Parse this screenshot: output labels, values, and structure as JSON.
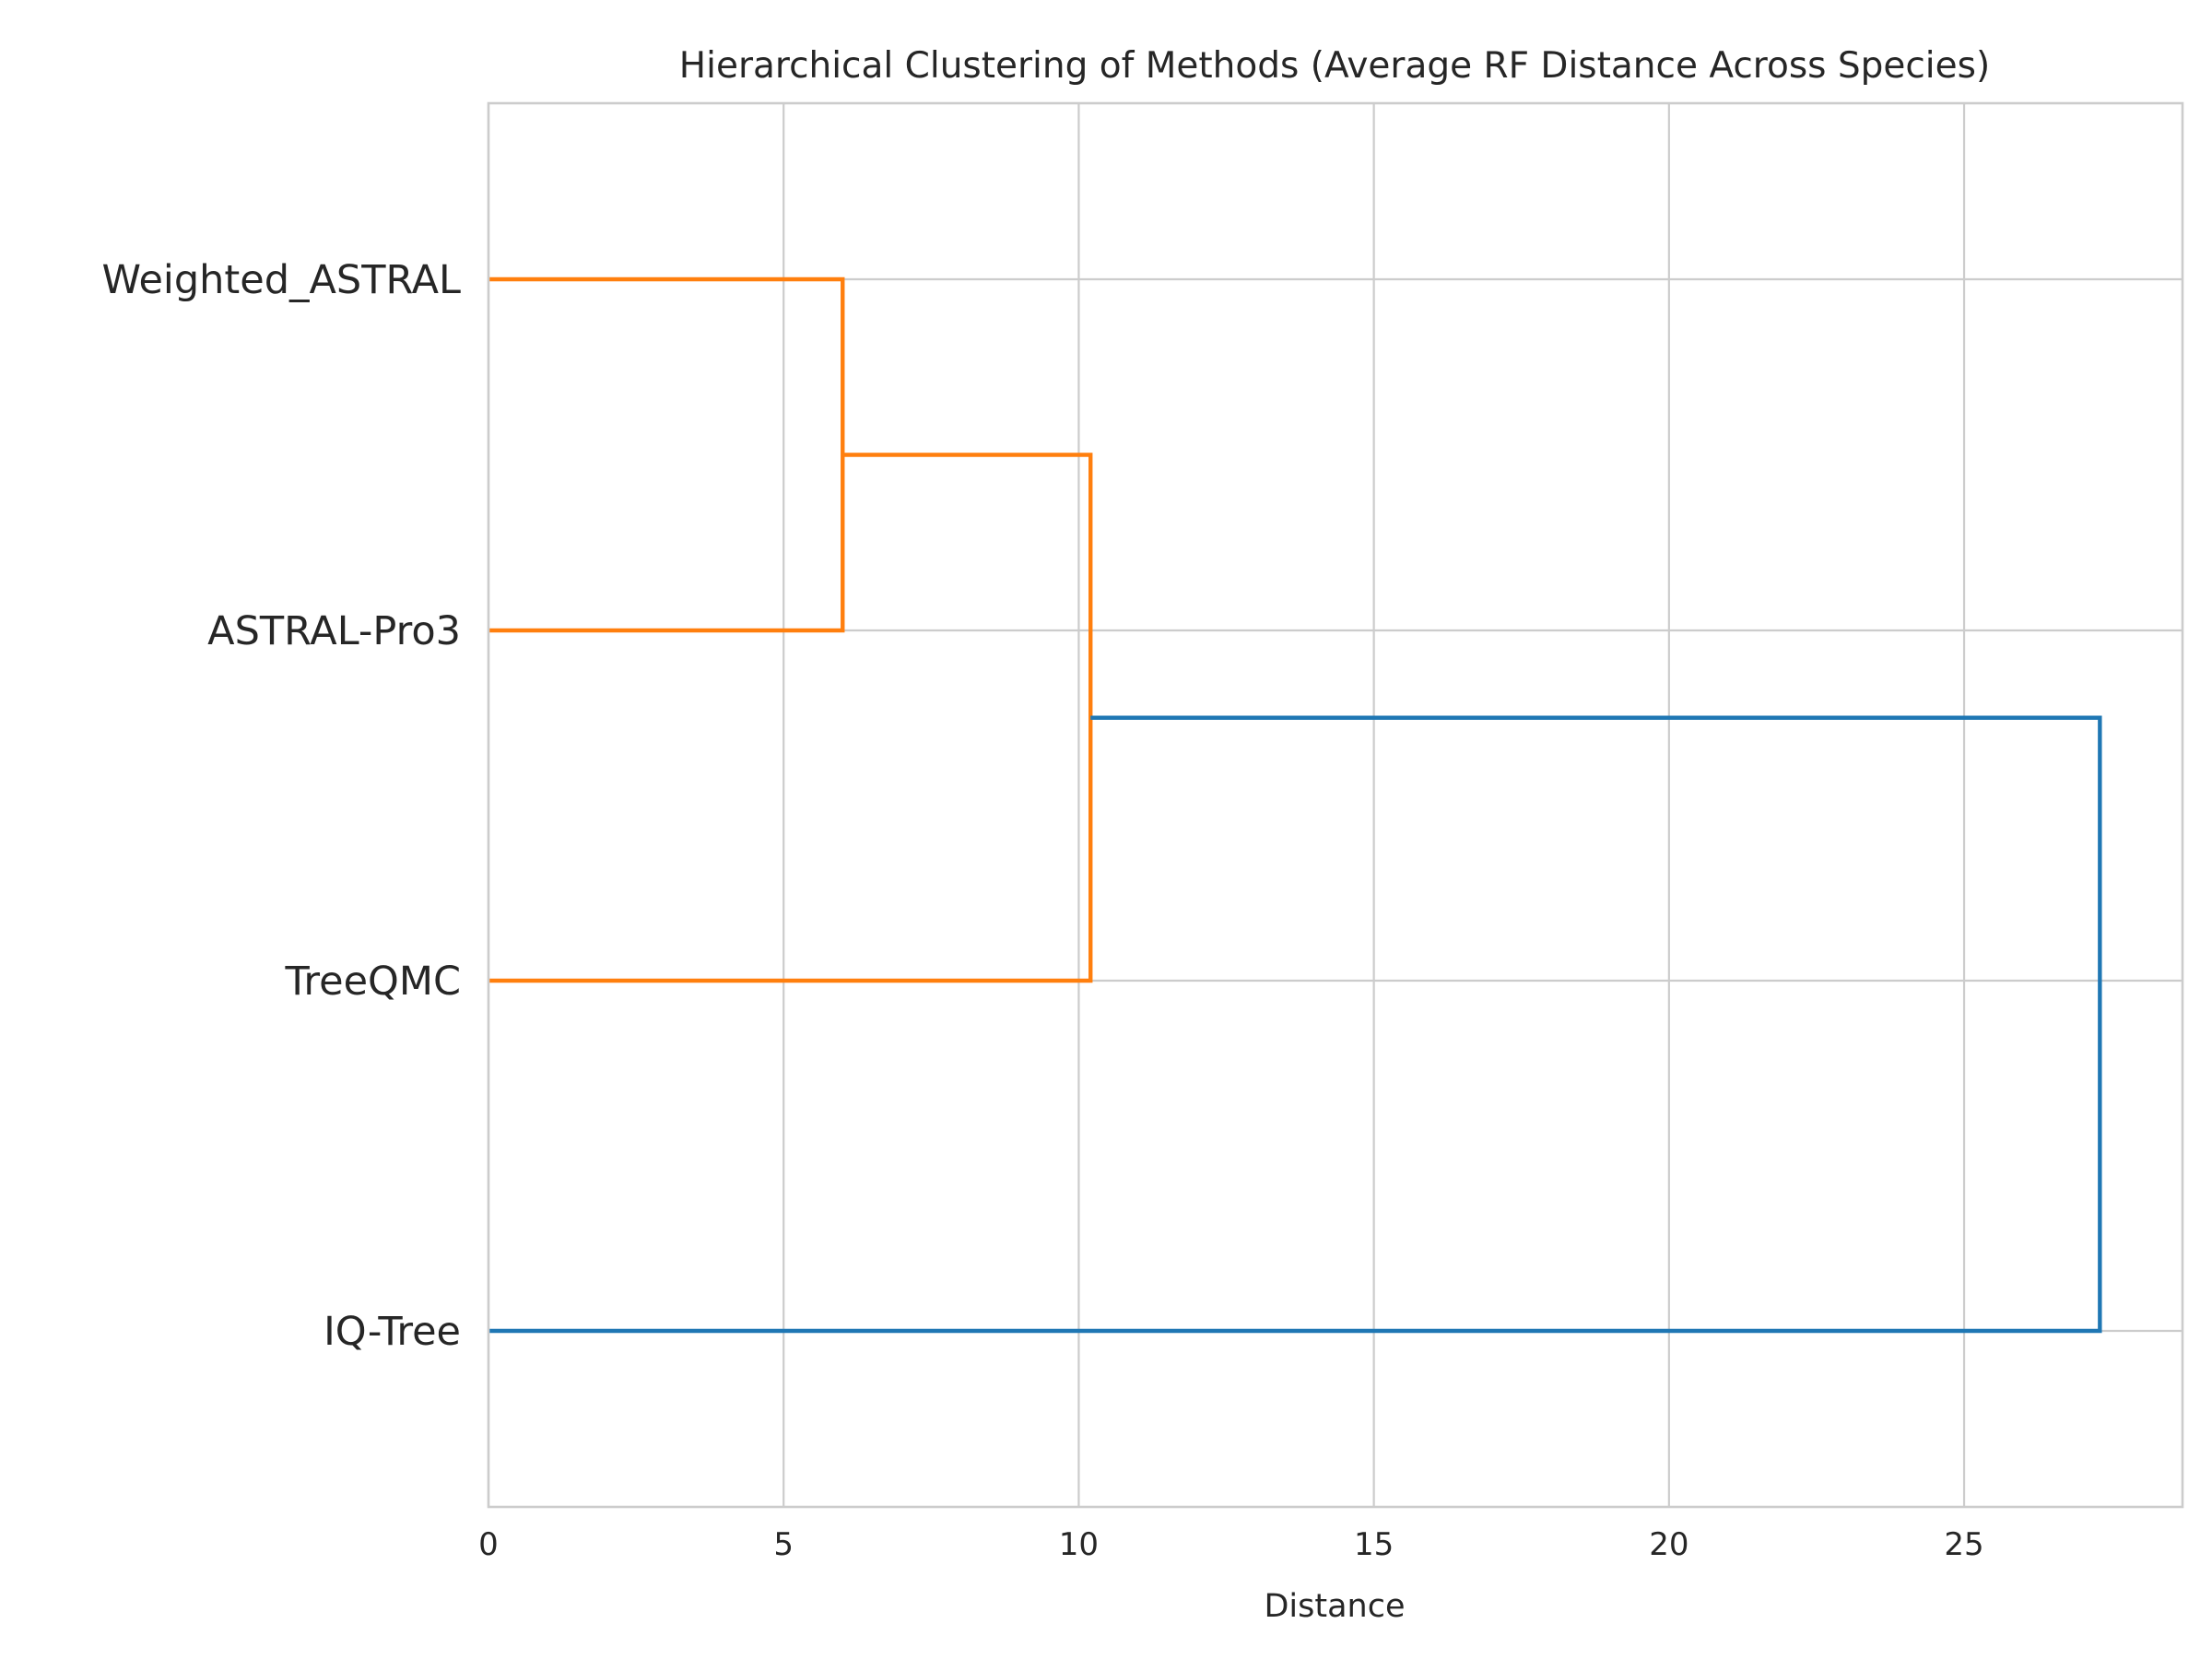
{
  "chart_data": {
    "type": "dendrogram",
    "title": "Hierarchical Clustering of Methods (Average RF Distance Across Species)",
    "xlabel": "Distance",
    "ylabel": "",
    "xlim": [
      0,
      28.7
    ],
    "xticks": [
      0,
      5,
      10,
      15,
      20,
      25
    ],
    "grid": true,
    "orientation": "left",
    "leaves": [
      "Weighted_ASTRAL",
      "ASTRAL-Pro3",
      "TreeQMC",
      "IQ-Tree"
    ],
    "merges": [
      {
        "left": "Weighted_ASTRAL",
        "right": "ASTRAL-Pro3",
        "distance": 6.0,
        "color": "#ff7f0e"
      },
      {
        "left": "Weighted_ASTRAL+ASTRAL-Pro3",
        "right": "TreeQMC",
        "distance": 10.2,
        "color": "#ff7f0e"
      },
      {
        "left": "Weighted_ASTRAL+ASTRAL-Pro3+TreeQMC",
        "right": "IQ-Tree",
        "distance": 27.3,
        "color": "#1f77b4"
      }
    ],
    "colors": {
      "cluster": "#ff7f0e",
      "above_threshold": "#1f77b4",
      "grid": "#cccccc",
      "text": "#262626"
    }
  }
}
